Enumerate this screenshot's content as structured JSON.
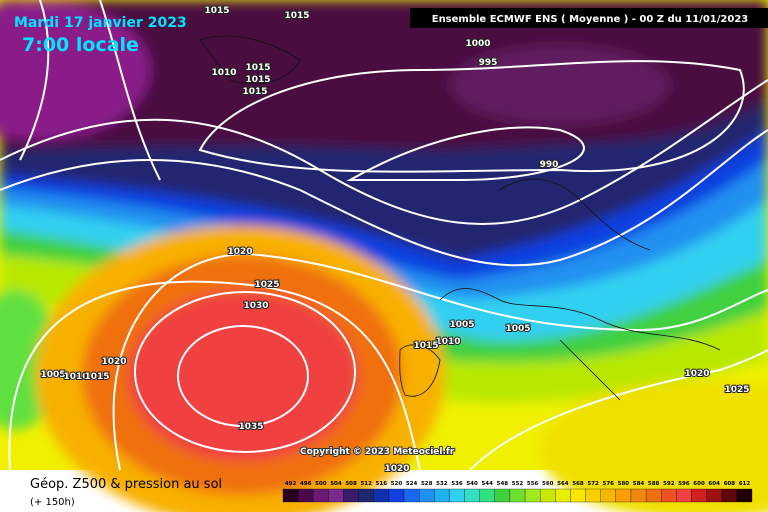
{
  "header": {
    "date": "Mardi 17 janvier 2023",
    "time": "7:00 locale",
    "model": "Ensemble ECMWF ENS  ( Moyenne )  -  00 Z du 11/01/2023"
  },
  "isobars": [
    1015,
    1015,
    1000,
    995,
    1010,
    1015,
    1015,
    1015,
    990,
    1020,
    1025,
    1030,
    1005,
    1005,
    1010,
    1015,
    1020,
    1005,
    1010,
    1015,
    1020,
    1025,
    1035,
    1020
  ],
  "copyright": "Copyright © 2023 Meteociel.fr",
  "legend": {
    "title": "Géop. Z500 & pression au sol",
    "lead": "(+ 150h)",
    "values": [
      492,
      496,
      500,
      504,
      508,
      512,
      516,
      520,
      524,
      528,
      532,
      536,
      540,
      544,
      548,
      552,
      556,
      560,
      564,
      568,
      572,
      576,
      580,
      584,
      588,
      592,
      596,
      600,
      604,
      608,
      612
    ]
  }
}
